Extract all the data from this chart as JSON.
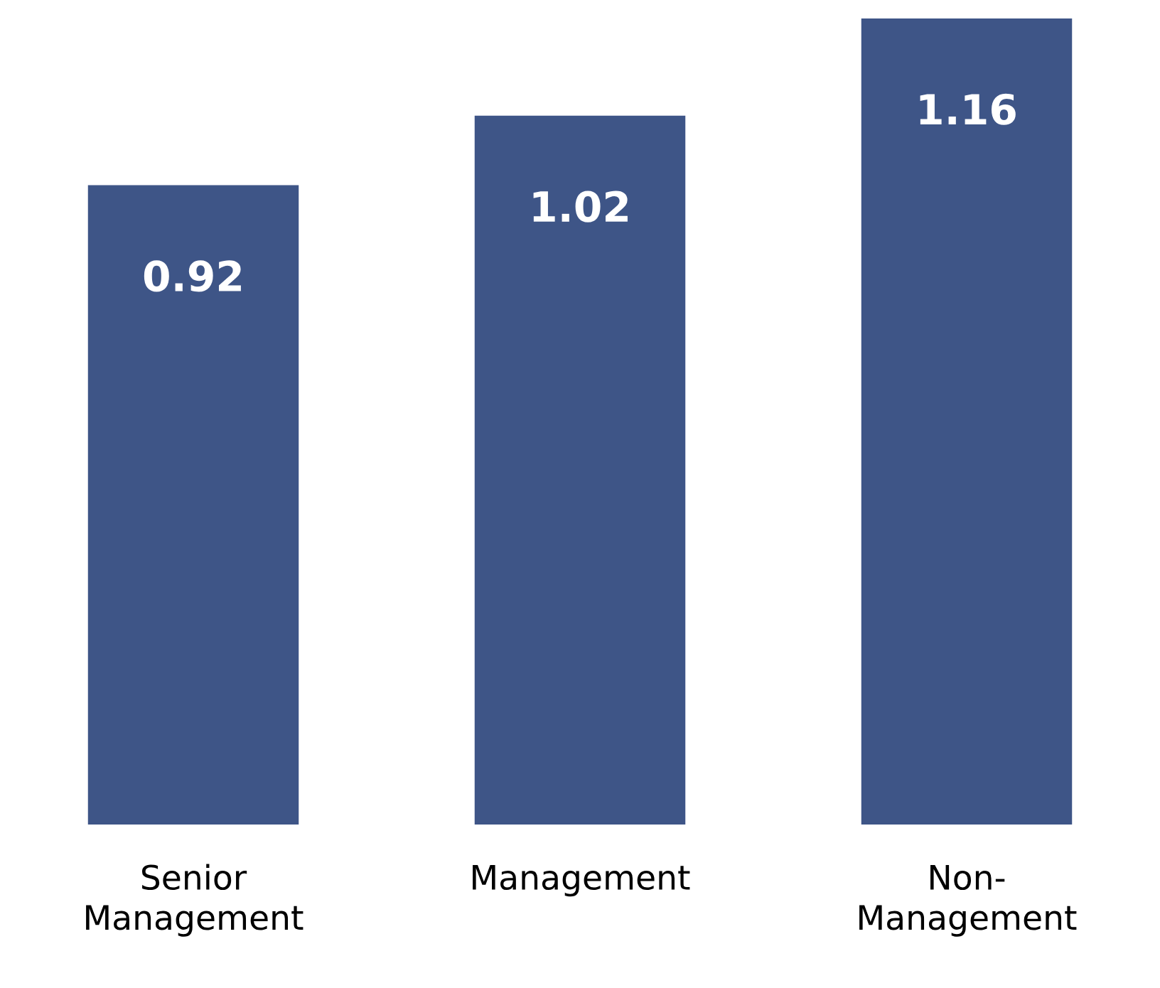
{
  "chart_data": {
    "type": "bar",
    "categories": [
      "Senior\nManagement",
      "Management",
      "Non-\nManagement"
    ],
    "values": [
      0.92,
      1.02,
      1.16
    ],
    "color": "#3e5587",
    "data_labels": true,
    "grid": false,
    "legend": false
  }
}
